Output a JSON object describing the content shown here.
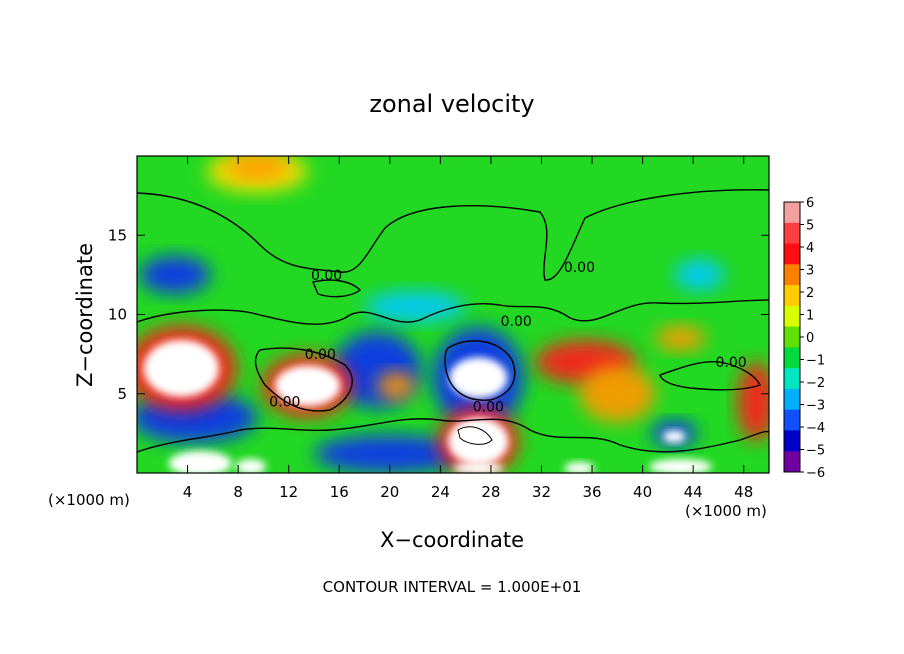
{
  "chart_data": {
    "type": "heatmap",
    "title": "zonal velocity",
    "xlabel": "X−coordinate",
    "ylabel": "Z−coordinate",
    "x_unit": "(×1000 m)",
    "y_unit": "(×1000 m)",
    "xlim": [
      0,
      50
    ],
    "ylim": [
      0,
      20
    ],
    "x_ticks": [
      4,
      8,
      12,
      16,
      20,
      24,
      28,
      32,
      36,
      40,
      44,
      48
    ],
    "x_tick_labels": [
      "4",
      "8",
      "12",
      "16",
      "20",
      "24",
      "28",
      "32",
      "36",
      "40",
      "44",
      "48"
    ],
    "y_ticks": [
      5,
      10,
      15
    ],
    "y_tick_labels": [
      "5",
      "10",
      "15"
    ],
    "contour_interval_text": "CONTOUR INTERVAL = 1.000E+01",
    "contour_label": "0.00",
    "colorbar": {
      "ticks": [
        6,
        5,
        4,
        3,
        2,
        1,
        0,
        -1,
        -2,
        -3,
        -4,
        -5,
        -6
      ],
      "tick_labels": [
        "6",
        "5",
        "4",
        "3",
        "2",
        "1",
        "0",
        "−1",
        "−2",
        "−3",
        "−4",
        "−5",
        "−6"
      ],
      "colors": [
        "#f2a0a0",
        "#ff4040",
        "#ff1010",
        "#ff8000",
        "#ffcc00",
        "#d8ff00",
        "#60e000",
        "#00d840",
        "#00e6c0",
        "#00b0ff",
        "#1050ff",
        "#0000c8",
        "#7000a0"
      ]
    },
    "fill_color": "#22d822",
    "features": [
      {
        "kind": "white",
        "x": 3.5,
        "z": 6.6,
        "rx": 3.0,
        "rz": 1.8
      },
      {
        "kind": "red",
        "x": 3.5,
        "z": 6.6,
        "rx": 4.4,
        "rz": 2.7
      },
      {
        "kind": "blue",
        "x": 4.5,
        "z": 3.5,
        "rx": 5.0,
        "rz": 1.6
      },
      {
        "kind": "blue",
        "x": 3.0,
        "z": 12.5,
        "rx": 2.8,
        "rz": 1.2
      },
      {
        "kind": "yellow",
        "x": 9.5,
        "z": 19.0,
        "rx": 4.0,
        "rz": 1.3
      },
      {
        "kind": "orange",
        "x": 9.5,
        "z": 19.3,
        "rx": 2.5,
        "rz": 0.8
      },
      {
        "kind": "white",
        "x": 13.5,
        "z": 5.5,
        "rx": 2.6,
        "rz": 1.3
      },
      {
        "kind": "red",
        "x": 13.5,
        "z": 5.5,
        "rx": 3.6,
        "rz": 2.0
      },
      {
        "kind": "blue",
        "x": 19.0,
        "z": 6.5,
        "rx": 3.5,
        "rz": 2.4
      },
      {
        "kind": "orange",
        "x": 20.5,
        "z": 5.5,
        "rx": 1.5,
        "rz": 0.9
      },
      {
        "kind": "white",
        "x": 27.0,
        "z": 6.0,
        "rx": 2.3,
        "rz": 1.3
      },
      {
        "kind": "blue",
        "x": 27.0,
        "z": 6.0,
        "rx": 3.6,
        "rz": 3.2
      },
      {
        "kind": "white",
        "x": 27.0,
        "z": 2.0,
        "rx": 2.4,
        "rz": 1.5
      },
      {
        "kind": "red",
        "x": 27.0,
        "z": 2.0,
        "rx": 3.2,
        "rz": 2.2
      },
      {
        "kind": "blue",
        "x": 20.0,
        "z": 1.2,
        "rx": 6.0,
        "rz": 1.2
      },
      {
        "kind": "red",
        "x": 35.5,
        "z": 7.0,
        "rx": 4.0,
        "rz": 1.4
      },
      {
        "kind": "orange",
        "x": 38.0,
        "z": 5.0,
        "rx": 3.0,
        "rz": 1.8
      },
      {
        "kind": "orange",
        "x": 43.0,
        "z": 8.5,
        "rx": 2.0,
        "rz": 0.8
      },
      {
        "kind": "cyan",
        "x": 44.5,
        "z": 12.5,
        "rx": 2.0,
        "rz": 1.0
      },
      {
        "kind": "cyan",
        "x": 22.0,
        "z": 10.5,
        "rx": 4.0,
        "rz": 1.0
      },
      {
        "kind": "blue",
        "x": 42.5,
        "z": 2.5,
        "rx": 1.8,
        "rz": 0.8
      },
      {
        "kind": "white",
        "x": 42.5,
        "z": 2.3,
        "rx": 0.9,
        "rz": 0.4
      },
      {
        "kind": "red",
        "x": 49.0,
        "z": 4.5,
        "rx": 1.5,
        "rz": 2.5
      },
      {
        "kind": "white",
        "x": 5.0,
        "z": 0.6,
        "rx": 2.5,
        "rz": 0.8
      },
      {
        "kind": "white",
        "x": 9.0,
        "z": 0.4,
        "rx": 1.2,
        "rz": 0.5
      },
      {
        "kind": "white",
        "x": 27.0,
        "z": 0.3,
        "rx": 2.0,
        "rz": 0.4
      },
      {
        "kind": "white",
        "x": 35.0,
        "z": 0.3,
        "rx": 1.2,
        "rz": 0.4
      },
      {
        "kind": "white",
        "x": 43.0,
        "z": 0.4,
        "rx": 2.5,
        "rz": 0.5
      }
    ],
    "zero_contour_label_positions": [
      {
        "x": 15.0,
        "z": 12.5
      },
      {
        "x": 14.5,
        "z": 7.5
      },
      {
        "x": 11.7,
        "z": 4.5
      },
      {
        "x": 30.0,
        "z": 9.6
      },
      {
        "x": 35.0,
        "z": 13.0
      },
      {
        "x": 27.8,
        "z": 4.2
      },
      {
        "x": 47.0,
        "z": 7.0
      }
    ]
  }
}
